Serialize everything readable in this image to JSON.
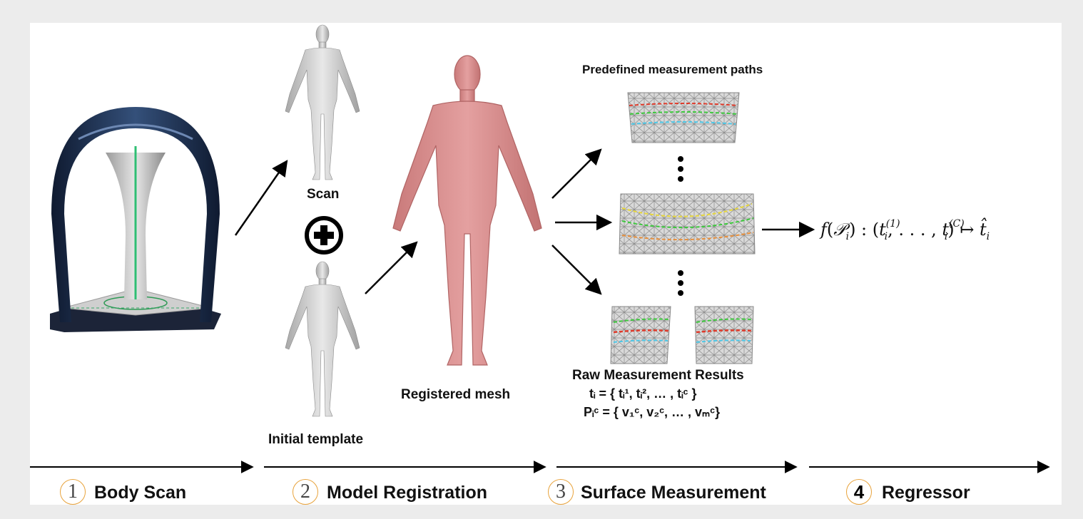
{
  "labels": {
    "scan": "Scan",
    "initial_template": "Initial template",
    "registered_mesh": "Registered mesh",
    "predefined_paths": "Predefined measurement paths",
    "raw_results": "Raw Measurement Results",
    "t_line": "tᵢ  = { tᵢ¹,  tᵢ²,  … , tᵢᶜ }",
    "p_line": "Pᵢᶜ = { v₁ᶜ, v₂ᶜ, … , vₘᶜ}"
  },
  "formula": {
    "f": "f",
    "lp": "(",
    "P": "𝒫",
    "i1": "i",
    "rp_colon": ") : (",
    "t1": "t",
    "t1_sup": "(1)",
    "t1_sub": "i",
    "dots": ", . . . , ",
    "t2": "t",
    "t2_sup": "(C)",
    "t2_sub": "i",
    "mapsto": ") ↦ ",
    "that": "t̂",
    "that_sub": "i"
  },
  "stages": [
    {
      "num": "1",
      "label": "Body Scan"
    },
    {
      "num": "2",
      "label": "Model Registration"
    },
    {
      "num": "3",
      "label": "Surface Measurement"
    },
    {
      "num": "4",
      "label": "Regressor"
    }
  ],
  "colors": {
    "scanner_frame": "#1c2a45",
    "mesh_pink": "#d98c8c",
    "gray_body": "#c8c8c8",
    "circle_outline": "#e8a33c",
    "path_red": "#e03a2a",
    "path_green": "#3cc83c",
    "path_cyan": "#4cc8e8",
    "path_yellow": "#e8d83c",
    "path_orange": "#e8903c"
  }
}
